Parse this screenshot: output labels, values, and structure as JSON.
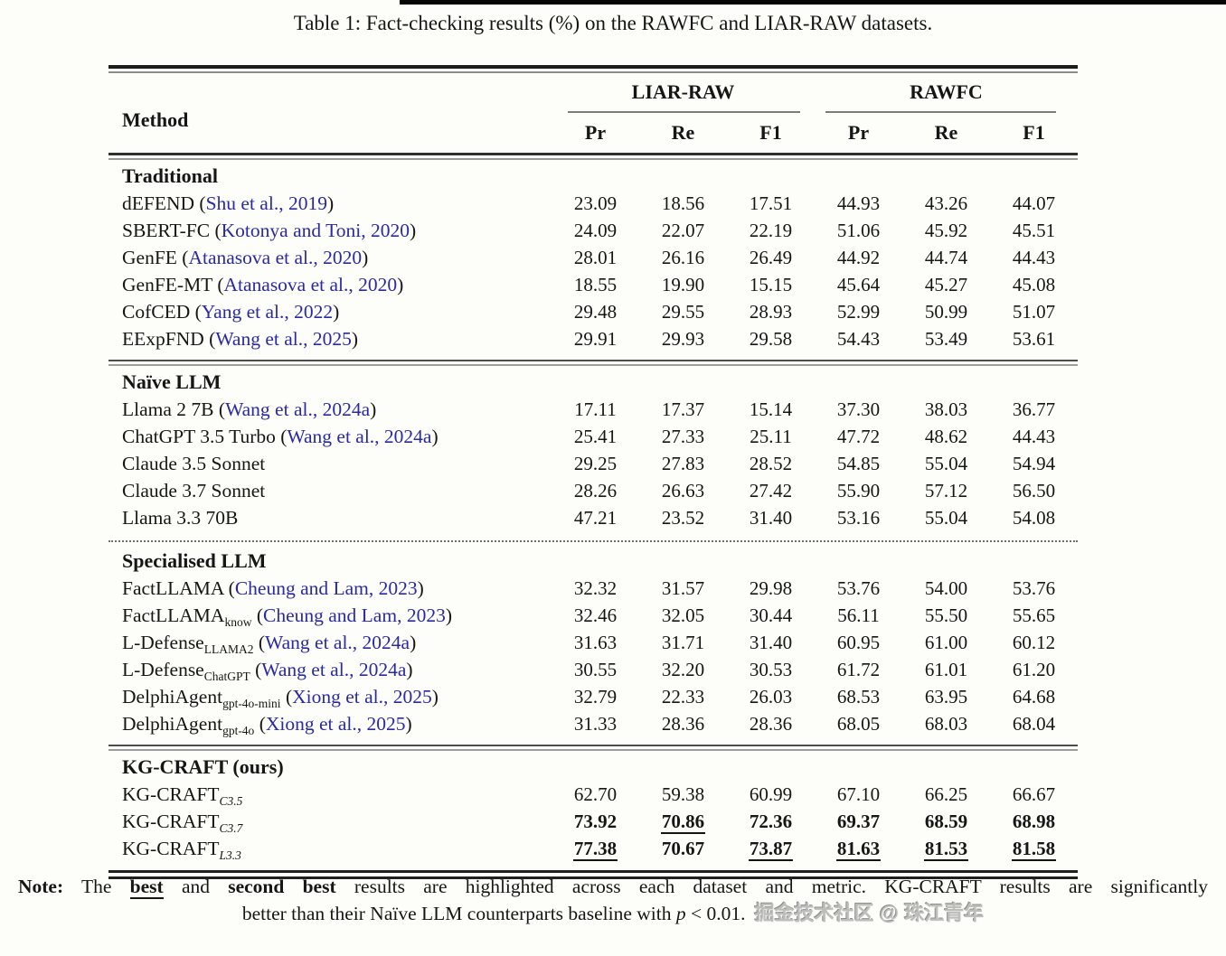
{
  "page": {
    "title": "Table 1: Fact-checking results (%) on the RAWFC and LIAR-RAW datasets.",
    "watermark": "掘金技术社区 @ 珠江青年"
  },
  "table": {
    "method_header": "Method",
    "col_groups": [
      {
        "label": "LIAR-RAW",
        "metrics": [
          "Pr",
          "Re",
          "F1"
        ]
      },
      {
        "label": "RAWFC",
        "metrics": [
          "Pr",
          "Re",
          "F1"
        ]
      }
    ],
    "sections": [
      {
        "name": "Traditional",
        "divider_after": "double",
        "rows": [
          {
            "method": "dEFEND",
            "sub": null,
            "sub_italic": false,
            "cite": "Shu et al., 2019",
            "values": [
              "23.09",
              "18.56",
              "17.51",
              "44.93",
              "43.26",
              "44.07"
            ],
            "styles": [
              "n",
              "n",
              "n",
              "n",
              "n",
              "n"
            ]
          },
          {
            "method": "SBERT-FC",
            "sub": null,
            "sub_italic": false,
            "cite": "Kotonya and Toni, 2020",
            "values": [
              "24.09",
              "22.07",
              "22.19",
              "51.06",
              "45.92",
              "45.51"
            ],
            "styles": [
              "n",
              "n",
              "n",
              "n",
              "n",
              "n"
            ]
          },
          {
            "method": "GenFE",
            "sub": null,
            "sub_italic": false,
            "cite": "Atanasova et al., 2020",
            "values": [
              "28.01",
              "26.16",
              "26.49",
              "44.92",
              "44.74",
              "44.43"
            ],
            "styles": [
              "n",
              "n",
              "n",
              "n",
              "n",
              "n"
            ]
          },
          {
            "method": "GenFE-MT",
            "sub": null,
            "sub_italic": false,
            "cite": "Atanasova et al., 2020",
            "values": [
              "18.55",
              "19.90",
              "15.15",
              "45.64",
              "45.27",
              "45.08"
            ],
            "styles": [
              "n",
              "n",
              "n",
              "n",
              "n",
              "n"
            ]
          },
          {
            "method": "CofCED",
            "sub": null,
            "sub_italic": false,
            "cite": "Yang et al., 2022",
            "values": [
              "29.48",
              "29.55",
              "28.93",
              "52.99",
              "50.99",
              "51.07"
            ],
            "styles": [
              "n",
              "n",
              "n",
              "n",
              "n",
              "n"
            ]
          },
          {
            "method": "EExpFND",
            "sub": null,
            "sub_italic": false,
            "cite": "Wang et al., 2025",
            "values": [
              "29.91",
              "29.93",
              "29.58",
              "54.43",
              "53.49",
              "53.61"
            ],
            "styles": [
              "n",
              "n",
              "n",
              "n",
              "n",
              "n"
            ]
          }
        ]
      },
      {
        "name": "Naïve LLM",
        "divider_after": "dotted",
        "rows": [
          {
            "method": "Llama 2 7B",
            "sub": null,
            "sub_italic": false,
            "cite": "Wang et al., 2024a",
            "values": [
              "17.11",
              "17.37",
              "15.14",
              "37.30",
              "38.03",
              "36.77"
            ],
            "styles": [
              "n",
              "n",
              "n",
              "n",
              "n",
              "n"
            ]
          },
          {
            "method": "ChatGPT 3.5 Turbo",
            "sub": null,
            "sub_italic": false,
            "cite": "Wang et al., 2024a",
            "values": [
              "25.41",
              "27.33",
              "25.11",
              "47.72",
              "48.62",
              "44.43"
            ],
            "styles": [
              "n",
              "n",
              "n",
              "n",
              "n",
              "n"
            ]
          },
          {
            "method": "Claude 3.5 Sonnet",
            "sub": null,
            "sub_italic": false,
            "cite": null,
            "values": [
              "29.25",
              "27.83",
              "28.52",
              "54.85",
              "55.04",
              "54.94"
            ],
            "styles": [
              "n",
              "n",
              "n",
              "n",
              "n",
              "n"
            ]
          },
          {
            "method": "Claude 3.7 Sonnet",
            "sub": null,
            "sub_italic": false,
            "cite": null,
            "values": [
              "28.26",
              "26.63",
              "27.42",
              "55.90",
              "57.12",
              "56.50"
            ],
            "styles": [
              "n",
              "n",
              "n",
              "n",
              "n",
              "n"
            ]
          },
          {
            "method": "Llama 3.3 70B",
            "sub": null,
            "sub_italic": false,
            "cite": null,
            "values": [
              "47.21",
              "23.52",
              "31.40",
              "53.16",
              "55.04",
              "54.08"
            ],
            "styles": [
              "n",
              "n",
              "n",
              "n",
              "n",
              "n"
            ]
          }
        ]
      },
      {
        "name": "Specialised LLM",
        "divider_after": "double",
        "rows": [
          {
            "method": "FactLLAMA",
            "sub": null,
            "sub_italic": false,
            "cite": "Cheung and Lam, 2023",
            "values": [
              "32.32",
              "31.57",
              "29.98",
              "53.76",
              "54.00",
              "53.76"
            ],
            "styles": [
              "n",
              "n",
              "n",
              "n",
              "n",
              "n"
            ]
          },
          {
            "method": "FactLLAMA",
            "sub": "know",
            "sub_italic": false,
            "cite": "Cheung and Lam, 2023",
            "values": [
              "32.46",
              "32.05",
              "30.44",
              "56.11",
              "55.50",
              "55.65"
            ],
            "styles": [
              "n",
              "n",
              "n",
              "n",
              "n",
              "n"
            ]
          },
          {
            "method": "L-Defense",
            "sub": "LLAMA2",
            "sub_italic": false,
            "cite": "Wang et al., 2024a",
            "values": [
              "31.63",
              "31.71",
              "31.40",
              "60.95",
              "61.00",
              "60.12"
            ],
            "styles": [
              "n",
              "n",
              "n",
              "n",
              "n",
              "n"
            ]
          },
          {
            "method": "L-Defense",
            "sub": "ChatGPT",
            "sub_italic": false,
            "cite": "Wang et al., 2024a",
            "values": [
              "30.55",
              "32.20",
              "30.53",
              "61.72",
              "61.01",
              "61.20"
            ],
            "styles": [
              "n",
              "n",
              "n",
              "n",
              "n",
              "n"
            ]
          },
          {
            "method": "DelphiAgent",
            "sub": "gpt-4o-mini",
            "sub_italic": false,
            "cite": "Xiong et al., 2025",
            "values": [
              "32.79",
              "22.33",
              "26.03",
              "68.53",
              "63.95",
              "64.68"
            ],
            "styles": [
              "n",
              "n",
              "n",
              "n",
              "n",
              "n"
            ]
          },
          {
            "method": "DelphiAgent",
            "sub": "gpt-4o",
            "sub_italic": false,
            "cite": "Xiong et al., 2025",
            "values": [
              "31.33",
              "28.36",
              "28.36",
              "68.05",
              "68.03",
              "68.04"
            ],
            "styles": [
              "n",
              "n",
              "n",
              "n",
              "n",
              "n"
            ]
          }
        ]
      },
      {
        "name": "KG-CRAFT (ours)",
        "divider_after": null,
        "rows": [
          {
            "method": "KG-CRAFT",
            "sub": "C3.5",
            "sub_italic": true,
            "cite": null,
            "values": [
              "62.70",
              "59.38",
              "60.99",
              "67.10",
              "66.25",
              "66.67"
            ],
            "styles": [
              "n",
              "n",
              "n",
              "n",
              "n",
              "n"
            ]
          },
          {
            "method": "KG-CRAFT",
            "sub": "C3.7",
            "sub_italic": true,
            "cite": null,
            "values": [
              "73.92",
              "70.86",
              "72.36",
              "69.37",
              "68.59",
              "68.98"
            ],
            "styles": [
              "b",
              "bu",
              "b",
              "b",
              "b",
              "b"
            ]
          },
          {
            "method": "KG-CRAFT",
            "sub": "L3.3",
            "sub_italic": true,
            "cite": null,
            "values": [
              "77.38",
              "70.67",
              "73.87",
              "81.63",
              "81.53",
              "81.58"
            ],
            "styles": [
              "bu",
              "b",
              "bu",
              "bu",
              "bu",
              "bu"
            ]
          }
        ]
      }
    ]
  },
  "note": {
    "label": "Note:",
    "seg1": " The ",
    "best": "best",
    "seg2": " and ",
    "second_best": "second best",
    "seg3": " results are highlighted across each dataset and metric. KG-CRAFT results are significantly",
    "line2_pre": "better than their Naïve LLM counterparts baseline with ",
    "p_var": "p",
    "line2_post": " < 0.01."
  }
}
